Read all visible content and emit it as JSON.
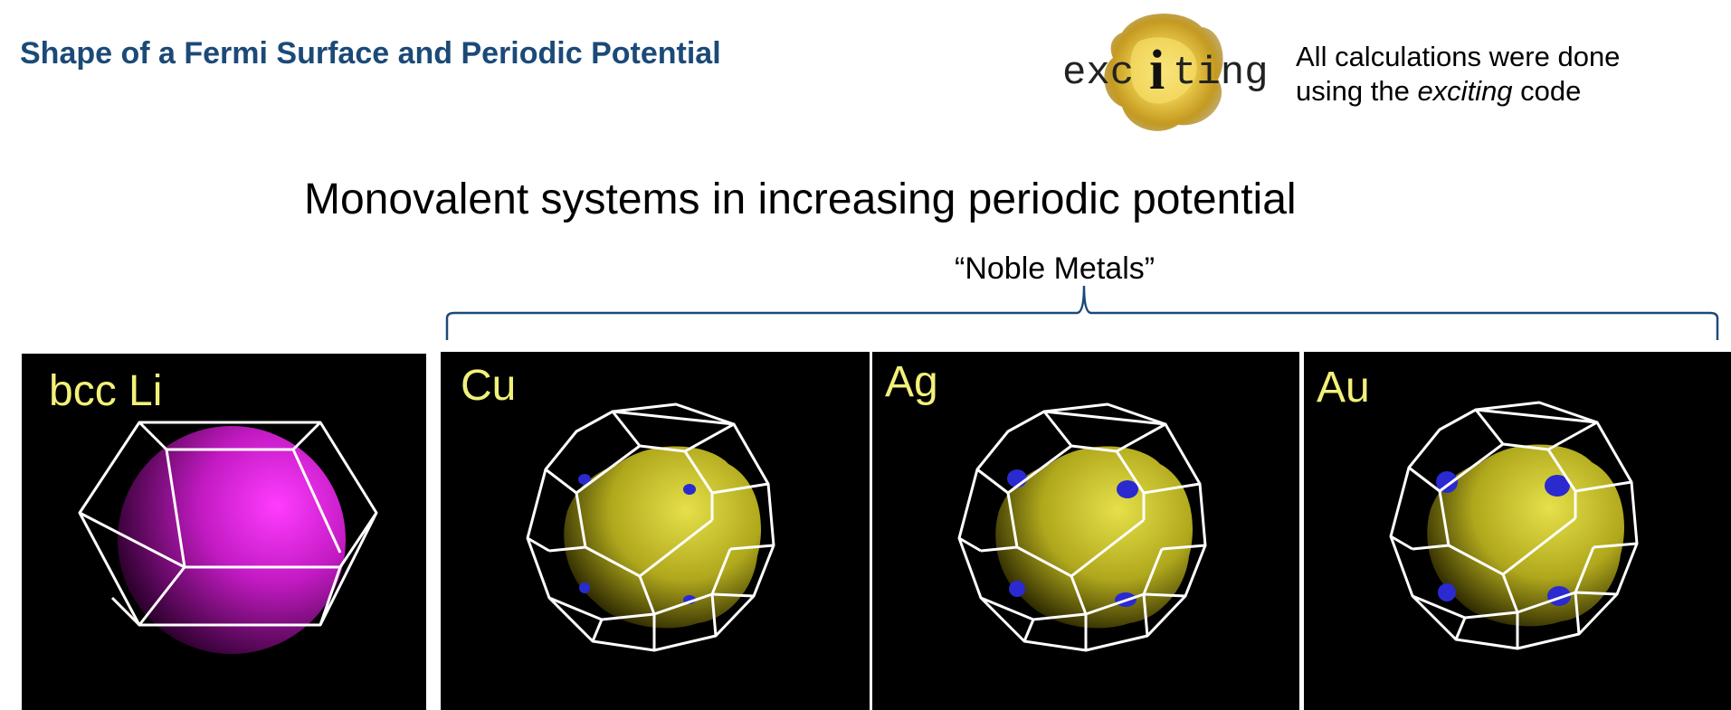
{
  "header": {
    "title": "Shape of a Fermi Surface and Periodic Potential",
    "logo_text": "exciting",
    "note_line1": "All calculations were done",
    "note_line2_prefix": "using the ",
    "note_line2_emph": "exciting",
    "note_line2_suffix": " code"
  },
  "main": {
    "subtitle": "Monovalent systems in increasing periodic potential",
    "group_label": "“Noble Metals”"
  },
  "panels": [
    {
      "label": "bcc Li",
      "surface_color": "#c21ac2"
    },
    {
      "label": "Cu",
      "surface_color": "#b8b020"
    },
    {
      "label": "Ag",
      "surface_color": "#b8b020"
    },
    {
      "label": "Au",
      "surface_color": "#b8b020"
    }
  ],
  "colors": {
    "title": "#1b4a78",
    "panel_label": "#f2f07a",
    "neck_color": "#2a2ad0",
    "brace": "#1b4a78"
  }
}
